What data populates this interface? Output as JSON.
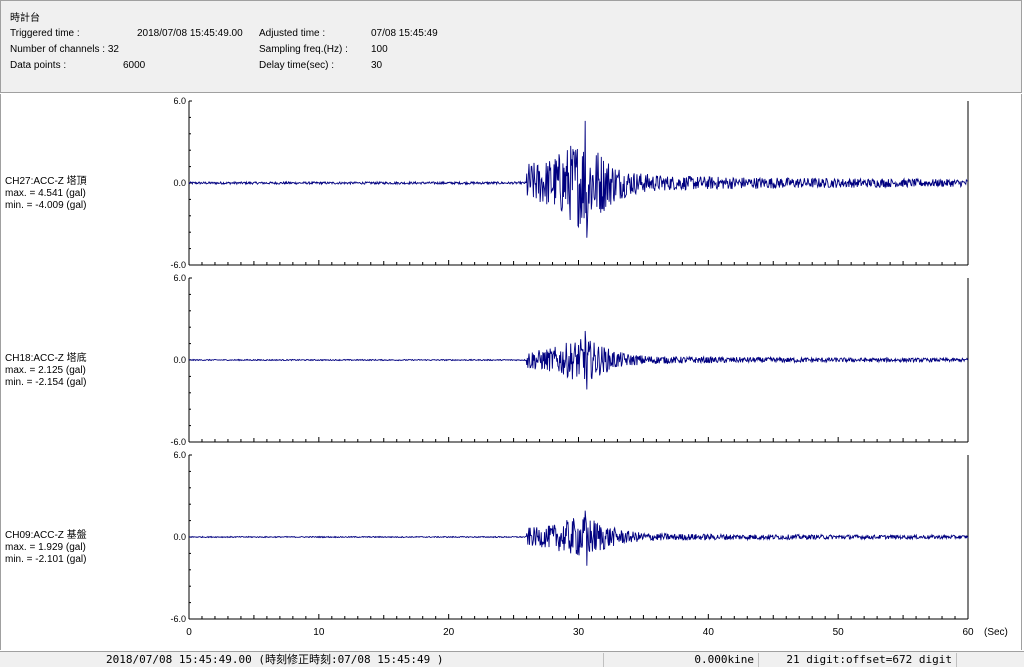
{
  "window": {
    "title": "時計台"
  },
  "header": {
    "triggered_label": "Triggered time :",
    "triggered_value": "2018/07/08 15:45:49.00",
    "channels_label": "Number of channels : 32",
    "datapoints_label": "Data points :",
    "datapoints_value": "6000",
    "adjusted_label": "Adjusted time :",
    "adjusted_value": "07/08 15:45:49",
    "sampling_label": "Sampling freq.(Hz) :",
    "sampling_value": "100",
    "delay_label": "Delay time(sec) :",
    "delay_value": "30"
  },
  "statusbar": {
    "time": "2018/07/08 15:45:49.00 (時刻修正時刻:07/08 15:45:49 )",
    "kine": "0.000kine",
    "digit": "21 digit:offset=672 digit"
  },
  "chart_data": [
    {
      "type": "line",
      "channel_label": "CH27:ACC-Z 塔頂",
      "max_label": "max. = 4.541 (gal)",
      "min_label": "min. = -4.009 (gal)",
      "max": 4.541,
      "min": -4.009,
      "ylim": [
        -6.0,
        6.0
      ],
      "yticks": [
        "6.0",
        "0.0",
        "-6.0"
      ],
      "xlim": [
        0,
        60
      ],
      "event_onset_sec": 26,
      "peak_time_sec": 30.5,
      "color": "#000080"
    },
    {
      "type": "line",
      "channel_label": "CH18:ACC-Z 塔底",
      "max_label": "max. = 2.125 (gal)",
      "min_label": "min. = -2.154 (gal)",
      "max": 2.125,
      "min": -2.154,
      "ylim": [
        -6.0,
        6.0
      ],
      "yticks": [
        "6.0",
        "0.0",
        "-6.0"
      ],
      "xlim": [
        0,
        60
      ],
      "event_onset_sec": 26,
      "peak_time_sec": 30.5,
      "color": "#000080"
    },
    {
      "type": "line",
      "channel_label": "CH09:ACC-Z 基盤",
      "max_label": "max. = 1.929 (gal)",
      "min_label": "min. = -2.101 (gal)",
      "max": 1.929,
      "min": -2.101,
      "ylim": [
        -6.0,
        6.0
      ],
      "yticks": [
        "6.0",
        "0.0",
        "-6.0"
      ],
      "xlim": [
        0,
        60
      ],
      "event_onset_sec": 26,
      "peak_time_sec": 30.5,
      "color": "#000080"
    }
  ],
  "xaxis": {
    "ticks": [
      "0",
      "10",
      "20",
      "30",
      "40",
      "50",
      "60"
    ],
    "unit": "(Sec)"
  }
}
